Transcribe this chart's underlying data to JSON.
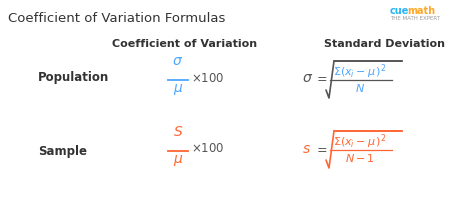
{
  "title": "Coefficient of Variation Formulas",
  "title_fontsize": 9.5,
  "title_color": "#333333",
  "bg_color": "#ffffff",
  "col1_header": "Coefficient of Variation",
  "col2_header": "Standard Deviation",
  "header_color": "#333333",
  "header_fontsize": 8,
  "row1_label": "Population",
  "row2_label": "Sample",
  "label_fontsize": 8.5,
  "label_color": "#333333",
  "blue_color": "#4da6ff",
  "orange_color": "#ff6633",
  "dark_color": "#555555",
  "cuemath_blue": "#29b6f6",
  "cuemath_orange": "#ffa726",
  "cuemath_gray": "#9e9e9e"
}
